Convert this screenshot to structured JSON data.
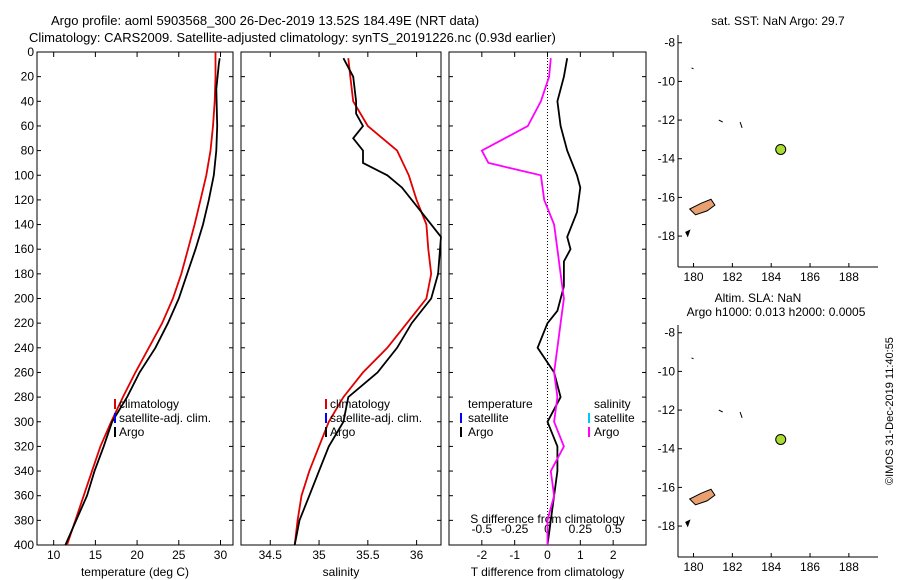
{
  "title": {
    "line1": "Argo profile: aoml 5903568_300 26-Dec-2019 13.52S 184.49E (NRT data)",
    "line2": "Climatology: CARS2009. Satellite-adjusted climatology: synTS_20191226.nc (0.93d earlier)"
  },
  "side_label": "©IMOS 31-Dec-2019 11:40:55",
  "colors": {
    "argo": "#000000",
    "climatology": "#e00000",
    "satellite_adj": "#0000ff",
    "salinity_diff": "#ff00ff",
    "satellite_s": "#00c8ff",
    "map_marker": "#a8dc30"
  },
  "chart_data": [
    {
      "type": "line",
      "name": "temperature",
      "xlabel": "temperature (deg C)",
      "xlim": [
        8,
        31.5
      ],
      "ylim": [
        400,
        0
      ],
      "xticks": [
        10,
        15,
        20,
        25,
        30
      ],
      "xtick_labels": [
        "10",
        "15",
        "20",
        "25",
        "30"
      ],
      "yticks": [
        0,
        20,
        40,
        60,
        80,
        100,
        120,
        140,
        160,
        180,
        200,
        220,
        240,
        260,
        280,
        300,
        320,
        340,
        360,
        380,
        400
      ],
      "ytick_labels": [
        "0",
        "20",
        "40",
        "60",
        "80",
        "100",
        "120",
        "140",
        "160",
        "180",
        "200",
        "220",
        "240",
        "260",
        "280",
        "300",
        "320",
        "340",
        "360",
        "380",
        "400"
      ],
      "legend": [
        "climatology",
        "satellite-adj. clim.",
        "Argo"
      ],
      "series": [
        {
          "name": "climatology",
          "color": "#e00000",
          "points": [
            [
              29.4,
              0
            ],
            [
              29.4,
              20
            ],
            [
              29.3,
              40
            ],
            [
              29.1,
              60
            ],
            [
              28.8,
              80
            ],
            [
              28.3,
              100
            ],
            [
              27.6,
              120
            ],
            [
              26.9,
              140
            ],
            [
              26.1,
              160
            ],
            [
              25.3,
              180
            ],
            [
              24.3,
              200
            ],
            [
              23.0,
              220
            ],
            [
              21.4,
              240
            ],
            [
              19.8,
              260
            ],
            [
              18.3,
              280
            ],
            [
              16.9,
              300
            ],
            [
              15.6,
              320
            ],
            [
              14.6,
              340
            ],
            [
              13.6,
              360
            ],
            [
              12.6,
              380
            ],
            [
              11.6,
              400
            ]
          ]
        },
        {
          "name": "Argo",
          "color": "#000000",
          "points": [
            [
              29.9,
              5
            ],
            [
              29.8,
              10
            ],
            [
              29.5,
              30
            ],
            [
              29.6,
              60
            ],
            [
              29.5,
              80
            ],
            [
              29.2,
              100
            ],
            [
              28.6,
              120
            ],
            [
              27.9,
              140
            ],
            [
              27.0,
              160
            ],
            [
              26.0,
              180
            ],
            [
              25.0,
              200
            ],
            [
              23.7,
              220
            ],
            [
              22.2,
              240
            ],
            [
              20.3,
              260
            ],
            [
              18.8,
              280
            ],
            [
              17.0,
              300
            ],
            [
              16.0,
              320
            ],
            [
              14.9,
              340
            ],
            [
              14.0,
              360
            ],
            [
              12.7,
              380
            ],
            [
              11.4,
              400
            ]
          ]
        }
      ]
    },
    {
      "type": "line",
      "name": "salinity",
      "xlabel": "salinity",
      "xlim": [
        34.2,
        36.25
      ],
      "ylim": [
        400,
        0
      ],
      "xticks": [
        34.5,
        35,
        35.5,
        36
      ],
      "xtick_labels": [
        "34.5",
        "35",
        "35.5",
        "36"
      ],
      "legend": [
        "climatology",
        "satellite-adj. clim.",
        "Argo"
      ],
      "series": [
        {
          "name": "climatology",
          "color": "#e00000",
          "points": [
            [
              35.3,
              5
            ],
            [
              35.32,
              20
            ],
            [
              35.35,
              40
            ],
            [
              35.5,
              60
            ],
            [
              35.8,
              80
            ],
            [
              35.92,
              100
            ],
            [
              36.0,
              120
            ],
            [
              36.1,
              140
            ],
            [
              36.12,
              160
            ],
            [
              36.15,
              180
            ],
            [
              36.1,
              200
            ],
            [
              35.9,
              220
            ],
            [
              35.7,
              240
            ],
            [
              35.45,
              260
            ],
            [
              35.25,
              280
            ],
            [
              35.1,
              300
            ],
            [
              35.0,
              320
            ],
            [
              34.9,
              340
            ],
            [
              34.82,
              360
            ],
            [
              34.78,
              380
            ],
            [
              34.75,
              400
            ]
          ]
        },
        {
          "name": "Argo",
          "color": "#000000",
          "points": [
            [
              35.25,
              5
            ],
            [
              35.35,
              20
            ],
            [
              35.38,
              40
            ],
            [
              35.38,
              50
            ],
            [
              35.45,
              60
            ],
            [
              35.35,
              70
            ],
            [
              35.45,
              80
            ],
            [
              35.45,
              90
            ],
            [
              35.7,
              100
            ],
            [
              35.85,
              110
            ],
            [
              36.05,
              130
            ],
            [
              36.25,
              150
            ],
            [
              36.22,
              180
            ],
            [
              36.15,
              200
            ],
            [
              35.95,
              220
            ],
            [
              35.8,
              240
            ],
            [
              35.6,
              260
            ],
            [
              35.3,
              280
            ],
            [
              35.25,
              300
            ],
            [
              35.1,
              320
            ],
            [
              35.0,
              340
            ],
            [
              34.9,
              360
            ],
            [
              34.8,
              380
            ],
            [
              34.75,
              400
            ]
          ]
        }
      ]
    },
    {
      "type": "line",
      "name": "differences",
      "xlabel": "T difference from climatology",
      "top_axis_label": "S difference from climatology",
      "xlim": [
        -3,
        3
      ],
      "ylim": [
        400,
        0
      ],
      "xticks": [
        -2,
        -1,
        0,
        1,
        2
      ],
      "xtick_labels": [
        "-2",
        "-1",
        "0",
        "1",
        "2"
      ],
      "top_xticks": [
        -2,
        -1,
        0,
        1,
        2
      ],
      "top_xtick_labels": [
        "-0.5",
        "-0.25",
        "0",
        "0.25",
        "0.5"
      ],
      "legend_temperature_title": "temperature",
      "legend_salinity_title": "salinity",
      "legend_left": [
        "satellite",
        "Argo"
      ],
      "legend_right": [
        "satellite",
        "Argo"
      ],
      "series": [
        {
          "name": "T difference (Argo)",
          "color": "#000000",
          "points": [
            [
              0.6,
              5
            ],
            [
              0.5,
              20
            ],
            [
              0.3,
              40
            ],
            [
              0.4,
              60
            ],
            [
              0.6,
              80
            ],
            [
              0.9,
              100
            ],
            [
              1.0,
              110
            ],
            [
              0.9,
              130
            ],
            [
              0.6,
              150
            ],
            [
              0.7,
              160
            ],
            [
              0.5,
              170
            ],
            [
              0.5,
              190
            ],
            [
              0.3,
              210
            ],
            [
              0.0,
              220
            ],
            [
              -0.3,
              240
            ],
            [
              0.2,
              260
            ],
            [
              0.4,
              280
            ],
            [
              0.0,
              300
            ],
            [
              0.3,
              320
            ],
            [
              0.3,
              340
            ],
            [
              0.2,
              360
            ],
            [
              0.1,
              380
            ],
            [
              0.0,
              400
            ]
          ]
        },
        {
          "name": "S difference (Argo)",
          "color": "#ff00ff",
          "points": [
            [
              0.1,
              5
            ],
            [
              0.05,
              20
            ],
            [
              -0.2,
              40
            ],
            [
              -0.6,
              60
            ],
            [
              -1.3,
              70
            ],
            [
              -2.0,
              80
            ],
            [
              -1.8,
              90
            ],
            [
              -0.2,
              100
            ],
            [
              -0.1,
              120
            ],
            [
              0.2,
              140
            ],
            [
              0.3,
              160
            ],
            [
              0.4,
              180
            ],
            [
              0.5,
              200
            ],
            [
              0.4,
              220
            ],
            [
              0.3,
              240
            ],
            [
              0.2,
              260
            ],
            [
              0.3,
              280
            ],
            [
              0.2,
              300
            ],
            [
              0.5,
              320
            ],
            [
              0.1,
              340
            ],
            [
              0.2,
              360
            ],
            [
              0.0,
              380
            ],
            [
              0.0,
              400
            ]
          ]
        }
      ]
    }
  ],
  "maps": [
    {
      "name": "sst-map",
      "title": "sat. SST: NaN Argo: 29.7",
      "xlim": [
        179.2,
        189.5
      ],
      "ylim": [
        -19.6,
        -7.6
      ],
      "xticks": [
        180,
        182,
        184,
        186,
        188
      ],
      "xtick_labels": [
        "180",
        "182",
        "184",
        "186",
        "188"
      ],
      "yticks": [
        -8,
        -10,
        -12,
        -14,
        -16,
        -18
      ],
      "ytick_labels": [
        "-8",
        "-10",
        "-12",
        "-14",
        "-16",
        "-18"
      ],
      "marker": {
        "lon": 184.49,
        "lat": -13.52
      }
    },
    {
      "name": "sla-map",
      "title_line1": "Altim. SLA: NaN",
      "title_line2": "Argo h1000: 0.013 h2000: 0.0005",
      "xlim": [
        179.2,
        189.5
      ],
      "ylim": [
        -19.6,
        -7.6
      ],
      "xticks": [
        180,
        182,
        184,
        186,
        188
      ],
      "xtick_labels": [
        "180",
        "182",
        "184",
        "186",
        "188"
      ],
      "yticks": [
        -8,
        -10,
        -12,
        -14,
        -16,
        -18
      ],
      "ytick_labels": [
        "-8",
        "-10",
        "-12",
        "-14",
        "-16",
        "-18"
      ],
      "marker": {
        "lon": 184.49,
        "lat": -13.52
      }
    }
  ]
}
